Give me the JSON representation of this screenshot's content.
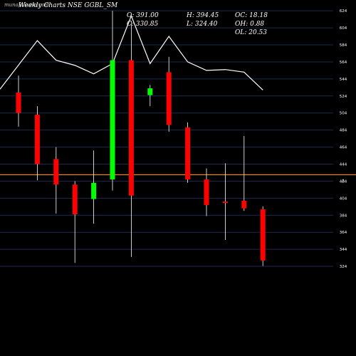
{
  "watermark": "munafaSutra.com",
  "chart_data": {
    "type": "candlestick",
    "title": "Weekly Charts NSE GGBL_SM",
    "readout": {
      "open": "O: 391.00",
      "high": "H: 394.45",
      "oc": "OC: 18.18",
      "close": "C: 330.85",
      "low": "L: 324.40",
      "oh": "OH: 0.88",
      "ol": "OL: 20.53"
    },
    "yaxis": {
      "range": [
        314,
        630
      ],
      "ticks": [
        624,
        604,
        584,
        564,
        544,
        524,
        504,
        484,
        464,
        444,
        424,
        404,
        384,
        364,
        344,
        324
      ]
    },
    "reference_line": {
      "value": 431.5,
      "label": "A",
      "color": "#ff8c00"
    },
    "colors": {
      "up": "#00ff00",
      "down": "#ff0000",
      "background": "#000000",
      "grid": "#1f2a4d",
      "ma": "#ffffff"
    },
    "candles": [
      {
        "open": 528,
        "high": 548,
        "low": 488,
        "close": 504
      },
      {
        "open": 502,
        "high": 512,
        "low": 425,
        "close": 444
      },
      {
        "open": 450,
        "high": 464,
        "low": 386,
        "close": 420
      },
      {
        "open": 420,
        "high": 424,
        "low": 328,
        "close": 385
      },
      {
        "open": 403,
        "high": 460,
        "low": 374,
        "close": 422
      },
      {
        "open": 426,
        "high": 624,
        "low": 413,
        "close": 566
      },
      {
        "open": 566,
        "high": 612,
        "low": 335,
        "close": 407
      },
      {
        "open": 525,
        "high": 537,
        "low": 512,
        "close": 533
      },
      {
        "open": 552,
        "high": 570,
        "low": 482,
        "close": 490
      },
      {
        "open": 487,
        "high": 493,
        "low": 422,
        "close": 426
      },
      {
        "open": 426,
        "high": 439,
        "low": 383,
        "close": 396
      },
      {
        "open": 400,
        "high": 445,
        "low": 355,
        "close": 399
      },
      {
        "open": 401,
        "high": 477,
        "low": 389,
        "close": 392
      },
      {
        "open": 391,
        "high": 394.45,
        "low": 324.4,
        "close": 330.85
      }
    ],
    "moving_average": [
      532,
      589,
      566,
      560,
      550,
      562,
      618,
      562,
      594,
      564,
      554,
      555,
      552,
      531
    ]
  }
}
